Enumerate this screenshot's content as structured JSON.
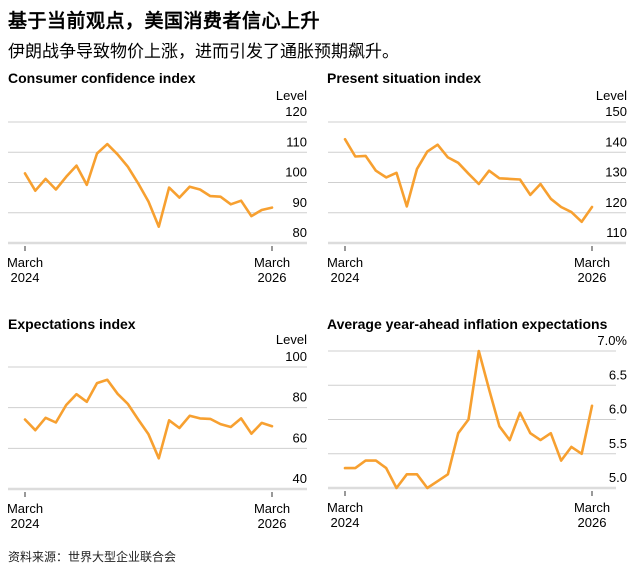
{
  "header": {
    "title": "基于当前观点，美国消费者信心上升",
    "subtitle": "伊朗战争导致物价上涨，进而引发了通胀预期飙升。"
  },
  "source": "资料来源：世界大型企业联合会",
  "colors": {
    "line": "#f7a030",
    "grid": "#cfcfcf"
  },
  "chart_data": [
    {
      "type": "line",
      "title": "Consumer confidence index",
      "ylabel": "Level",
      "yticks": [
        120,
        110,
        100,
        90,
        80
      ],
      "ylim": [
        80,
        120
      ],
      "xticks": [
        "March 2024",
        "March 2026"
      ],
      "x": [
        "2024-03",
        "2024-04",
        "2024-05",
        "2024-06",
        "2024-07",
        "2024-08",
        "2024-09",
        "2024-10",
        "2024-11",
        "2024-12",
        "2025-01",
        "2025-02",
        "2025-03",
        "2025-04",
        "2025-05",
        "2025-06",
        "2025-07",
        "2025-08",
        "2025-09",
        "2025-10",
        "2025-11",
        "2025-12",
        "2026-01",
        "2026-02",
        "2026-03"
      ],
      "values": [
        103.0,
        97.3,
        101.2,
        97.7,
        101.9,
        105.6,
        99.2,
        109.6,
        112.7,
        109.3,
        105.2,
        99.7,
        93.7,
        85.4,
        98.3,
        95.0,
        98.6,
        97.7,
        95.5,
        95.3,
        92.8,
        94.0,
        88.9,
        90.9,
        91.7
      ]
    },
    {
      "type": "line",
      "title": "Present situation index",
      "ylabel": "Level",
      "yticks": [
        150,
        140,
        130,
        120,
        110
      ],
      "ylim": [
        110,
        150
      ],
      "xticks": [
        "March 2024",
        "March 2026"
      ],
      "x": [
        "2024-03",
        "2024-04",
        "2024-05",
        "2024-06",
        "2024-07",
        "2024-08",
        "2024-09",
        "2024-10",
        "2024-11",
        "2024-12",
        "2025-01",
        "2025-02",
        "2025-03",
        "2025-04",
        "2025-05",
        "2025-06",
        "2025-07",
        "2025-08",
        "2025-09",
        "2025-10",
        "2025-11",
        "2025-12",
        "2026-01",
        "2026-02",
        "2026-03"
      ],
      "values": [
        144.3,
        138.6,
        138.8,
        133.9,
        131.7,
        133.2,
        122.1,
        134.5,
        140.2,
        142.5,
        138.3,
        136.5,
        132.9,
        129.5,
        133.9,
        131.4,
        131.2,
        131.0,
        125.9,
        129.5,
        124.6,
        121.9,
        120.2,
        117.0,
        121.9
      ]
    },
    {
      "type": "line",
      "title": "Expectations index",
      "ylabel": "Level",
      "yticks": [
        100,
        80,
        60,
        40
      ],
      "ylim": [
        40,
        100
      ],
      "xticks": [
        "March 2024",
        "March 2026"
      ],
      "x": [
        "2024-03",
        "2024-04",
        "2024-05",
        "2024-06",
        "2024-07",
        "2024-08",
        "2024-09",
        "2024-10",
        "2024-11",
        "2024-12",
        "2025-01",
        "2025-02",
        "2025-03",
        "2025-04",
        "2025-05",
        "2025-06",
        "2025-07",
        "2025-08",
        "2025-09",
        "2025-10",
        "2025-11",
        "2025-12",
        "2026-01",
        "2026-02",
        "2026-03"
      ],
      "values": [
        74.2,
        68.9,
        75.0,
        72.7,
        81.3,
        86.6,
        82.9,
        92.1,
        93.7,
        86.8,
        81.8,
        74.2,
        66.9,
        55.1,
        73.8,
        70.0,
        76.0,
        74.7,
        74.5,
        71.9,
        70.5,
        74.7,
        67.2,
        72.5,
        70.9
      ]
    },
    {
      "type": "line",
      "title": "Average year-ahead inflation expectations",
      "ylabel": "",
      "yticks": [
        "7.0%",
        "6.5",
        "6.0",
        "5.5",
        "5.0"
      ],
      "ylim": [
        5.0,
        7.0
      ],
      "xticks": [
        "March 2024",
        "March 2026"
      ],
      "x": [
        "2024-03",
        "2024-04",
        "2024-05",
        "2024-06",
        "2024-07",
        "2024-08",
        "2024-09",
        "2024-10",
        "2024-11",
        "2024-12",
        "2025-01",
        "2025-02",
        "2025-03",
        "2025-04",
        "2025-05",
        "2025-06",
        "2025-07",
        "2025-08",
        "2025-09",
        "2025-10",
        "2025-11",
        "2025-12",
        "2026-01",
        "2026-02",
        "2026-03"
      ],
      "values": [
        5.29,
        5.29,
        5.4,
        5.4,
        5.29,
        5.0,
        5.2,
        5.2,
        5.0,
        5.1,
        5.2,
        5.8,
        6.0,
        7.0,
        6.44,
        5.9,
        5.7,
        6.1,
        5.8,
        5.7,
        5.8,
        5.4,
        5.6,
        5.5,
        6.2
      ]
    }
  ],
  "x_labels": {
    "start_month": "March",
    "start_year": "2024",
    "end_month": "March",
    "end_year": "2026"
  }
}
